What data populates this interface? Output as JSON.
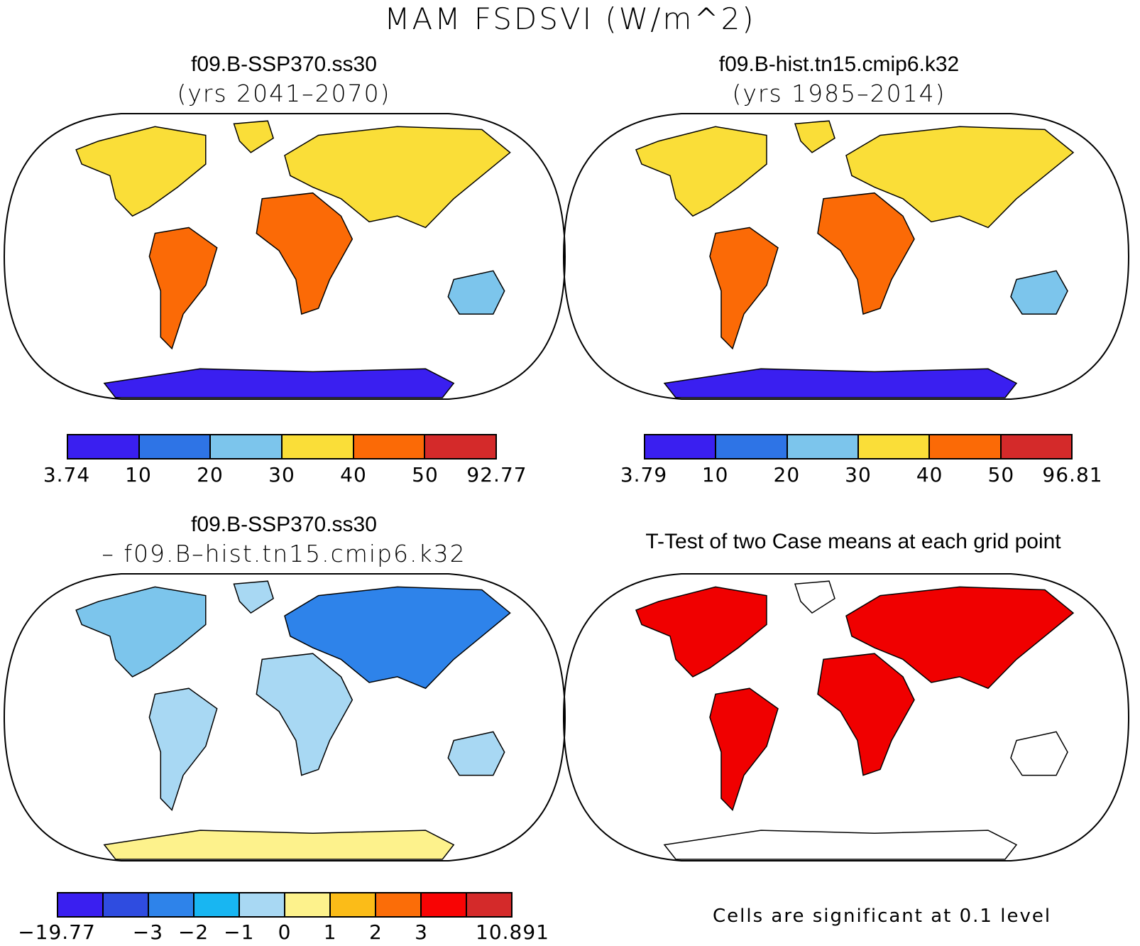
{
  "figure_title": "MAM FSDSVI (W/m^2)",
  "panels": [
    {
      "id": "case1",
      "title": "f09.B-SSP370.ss30",
      "subtitle": "(yrs 2041–2070)",
      "colorbar": {
        "colors": [
          "#3a1ff0",
          "#2e74e6",
          "#7cc5ec",
          "#fade38",
          "#fb6a06",
          "#d42a2a"
        ],
        "labels": [
          "3.74",
          "10",
          "20",
          "30",
          "40",
          "50",
          "92.77"
        ]
      }
    },
    {
      "id": "case2",
      "title": "f09.B-hist.tn15.cmip6.k32",
      "subtitle": "(yrs 1985–2014)",
      "colorbar": {
        "colors": [
          "#3a1ff0",
          "#2e74e6",
          "#7cc5ec",
          "#fade38",
          "#fb6a06",
          "#d42a2a"
        ],
        "labels": [
          "3.79",
          "10",
          "20",
          "30",
          "40",
          "50",
          "96.81"
        ]
      }
    },
    {
      "id": "difference",
      "title": "f09.B-SSP370.ss30",
      "subtitle": "– f09.B–hist.tn15.cmip6.k32",
      "colorbar": {
        "colors": [
          "#3a1ff0",
          "#2f4ce0",
          "#2e83ea",
          "#18b6f2",
          "#a8d8f3",
          "#fdf28c",
          "#fbbc18",
          "#fb6d08",
          "#f80404",
          "#d42a2a"
        ],
        "labels": [
          "−19.77",
          "",
          "−3",
          "−2",
          "−1",
          "0",
          "1",
          "2",
          "3",
          "",
          "10.891"
        ]
      }
    },
    {
      "id": "ttest",
      "title": "T-Test of two Case means at each grid point",
      "subtitle": "",
      "footnote": "Cells are significant at 0.1 level",
      "signif_color": "#f00000"
    }
  ]
}
